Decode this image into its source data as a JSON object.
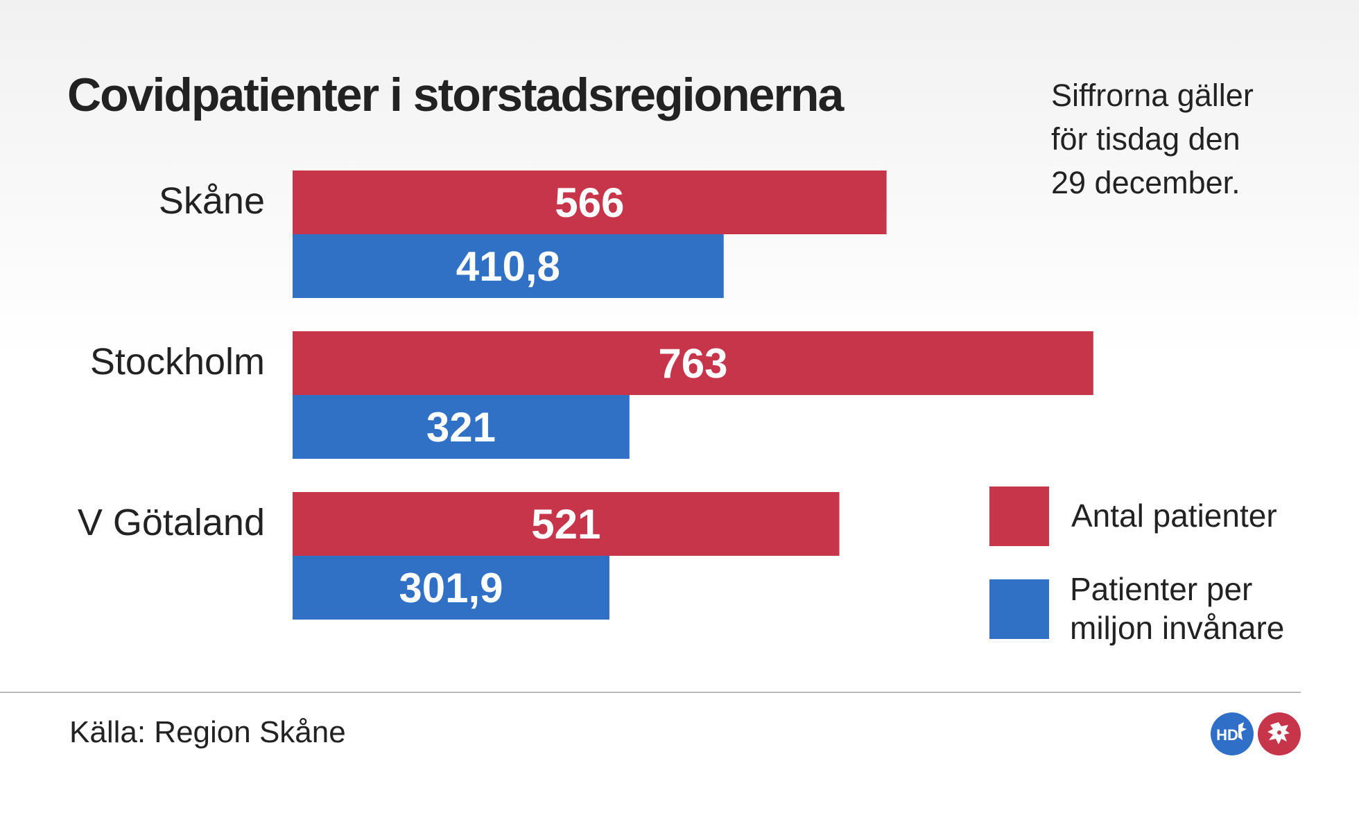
{
  "title": "Covidpatienter i storstadsregionerna",
  "note_lines": [
    "Siffrorna gäller",
    "för tisdag den",
    "29 december."
  ],
  "chart_data": {
    "type": "bar",
    "orientation": "horizontal",
    "categories": [
      "Skåne",
      "Stockholm",
      "V Götaland"
    ],
    "series": [
      {
        "name": "Antal patienter",
        "values": [
          566,
          763,
          521
        ],
        "labels": [
          "566",
          "763",
          "521"
        ],
        "color": "#c7354a"
      },
      {
        "name": "Patienter per miljon invånare",
        "values": [
          410.8,
          321,
          301.9
        ],
        "labels": [
          "410,8",
          "321",
          "301,9"
        ],
        "color": "#3071c6"
      }
    ],
    "grid": false,
    "legend_position": "right"
  },
  "legend": {
    "antal": "Antal patienter",
    "per_miljon_line1": "Patienter per",
    "per_miljon_line2": "miljon invånare"
  },
  "source": "Källa: Region Skåne",
  "logos": {
    "left": "HD",
    "right": "skane-griffin-icon"
  }
}
